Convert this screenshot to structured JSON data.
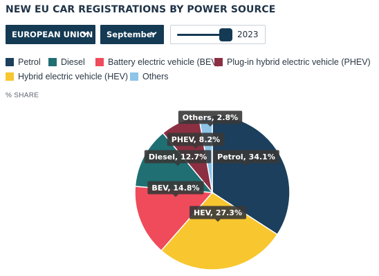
{
  "title": "NEW EU CAR REGISTRATIONS BY POWER SOURCE",
  "controls": {
    "region_select": "EUROPEAN UNION",
    "month_select": "September",
    "year_slider": {
      "value_label": "2023",
      "position": 0.88
    }
  },
  "unit_label": "% SHARE",
  "icons": {
    "dropdown": "chevron-down-icon"
  },
  "chart_data": {
    "type": "pie",
    "title": "NEW EU CAR REGISTRATIONS BY POWER SOURCE",
    "unit": "% SHARE",
    "legend_placement": "top",
    "legend": [
      {
        "name": "Petrol",
        "color": "#1b3f5c"
      },
      {
        "name": "Diesel",
        "color": "#1f6f73"
      },
      {
        "name": "Battery electric vehicle (BEV)",
        "color": "#ef4b5a"
      },
      {
        "name": "Plug-in hybrid electric vehicle (PHEV)",
        "color": "#8c2f42"
      },
      {
        "name": "Hybrid electric vehicle (HEV)",
        "color": "#f8c62e"
      },
      {
        "name": "Others",
        "color": "#8dc4e8"
      }
    ],
    "slices": [
      {
        "name": "Petrol",
        "label": "Petrol, 34.1%",
        "value": 34.1,
        "color": "#1b3f5c"
      },
      {
        "name": "HEV",
        "label": "HEV, 27.3%",
        "value": 27.3,
        "color": "#f8c62e"
      },
      {
        "name": "BEV",
        "label": "BEV, 14.8%",
        "value": 14.8,
        "color": "#ef4b5a"
      },
      {
        "name": "Diesel",
        "label": "Diesel, 12.7%",
        "value": 12.7,
        "color": "#1f6f73"
      },
      {
        "name": "PHEV",
        "label": "PHEV, 8.2%",
        "value": 8.2,
        "color": "#8c2f42"
      },
      {
        "name": "Others",
        "label": "Others, 2.8%",
        "value": 2.8,
        "color": "#8dc4e8"
      }
    ]
  }
}
